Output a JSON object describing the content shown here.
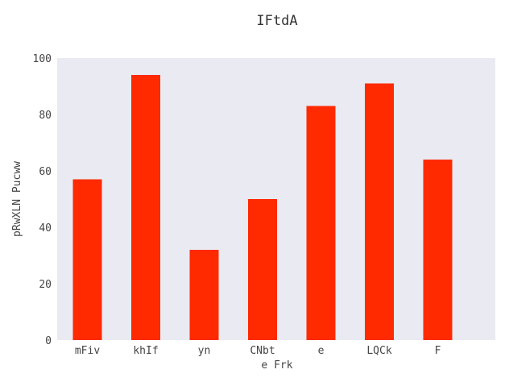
{
  "chart_data": {
    "type": "bar",
    "title": "IFtdA",
    "xlabel": "e Frk",
    "ylabel": "pRwXLN Pucww",
    "categories": [
      "mFiv",
      "khIf",
      "yn",
      "CNbt",
      "e",
      "LQCk",
      "F"
    ],
    "values": [
      57,
      94,
      32,
      50,
      83,
      91,
      64
    ],
    "ylim": [
      0,
      100
    ],
    "yticks": [
      0,
      20,
      40,
      60,
      80,
      100
    ],
    "grid": false,
    "legend": "none"
  },
  "colors": {
    "bar": "#ff2a00",
    "plot_background": "#eaeaf2"
  }
}
